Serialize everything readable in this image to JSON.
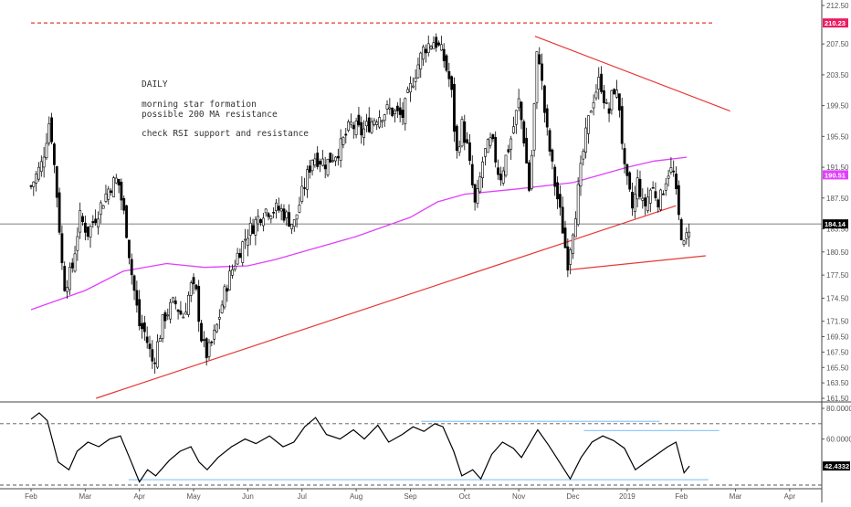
{
  "annotations": {
    "timeframe": "DAILY",
    "line1": "morning star formation",
    "line2": "possible 200 MA resistance",
    "line3": "check RSI support and resistance"
  },
  "chart_data": [
    {
      "type": "candlestick",
      "title": "",
      "ylim": [
        161.5,
        212.5
      ],
      "y_ticks": [
        "212.50",
        "207.50",
        "203.50",
        "199.50",
        "195.50",
        "191.50",
        "187.50",
        "183.50",
        "180.50",
        "177.50",
        "174.50",
        "171.50",
        "169.50",
        "167.50",
        "165.50",
        "163.50",
        "161.50"
      ],
      "x_ticks": [
        "Feb",
        "Mar",
        "Apr",
        "May",
        "Jun",
        "Jul",
        "Aug",
        "Sep",
        "Oct",
        "Nov",
        "Dec",
        "2019",
        "Feb",
        "Mar",
        "Apr"
      ],
      "price_labels": [
        {
          "text": "210.23",
          "value": 210.23,
          "color": "#e91e63"
        },
        {
          "text": "190.51",
          "value": 190.51,
          "color": "#e040fb"
        },
        {
          "text": "184.14",
          "value": 184.14,
          "color": "#000000"
        }
      ],
      "close_path": [
        {
          "m": 0,
          "v": 189
        },
        {
          "m": 0.2,
          "v": 192
        },
        {
          "m": 0.35,
          "v": 198
        },
        {
          "m": 0.5,
          "v": 186
        },
        {
          "m": 0.6,
          "v": 176
        },
        {
          "m": 0.75,
          "v": 178
        },
        {
          "m": 0.9,
          "v": 185
        },
        {
          "m": 1.05,
          "v": 183
        },
        {
          "m": 1.25,
          "v": 186
        },
        {
          "m": 1.45,
          "v": 189
        },
        {
          "m": 1.6,
          "v": 190
        },
        {
          "m": 1.75,
          "v": 184
        },
        {
          "m": 1.85,
          "v": 178
        },
        {
          "m": 2.0,
          "v": 171
        },
        {
          "m": 2.1,
          "v": 170
        },
        {
          "m": 2.25,
          "v": 166
        },
        {
          "m": 2.45,
          "v": 172
        },
        {
          "m": 2.65,
          "v": 174
        },
        {
          "m": 2.8,
          "v": 172
        },
        {
          "m": 2.95,
          "v": 176
        },
        {
          "m": 3.05,
          "v": 175
        },
        {
          "m": 3.15,
          "v": 169
        },
        {
          "m": 3.25,
          "v": 167
        },
        {
          "m": 3.4,
          "v": 170
        },
        {
          "m": 3.6,
          "v": 176
        },
        {
          "m": 3.8,
          "v": 180
        },
        {
          "m": 4.0,
          "v": 183
        },
        {
          "m": 4.3,
          "v": 186
        },
        {
          "m": 4.6,
          "v": 186
        },
        {
          "m": 4.85,
          "v": 184
        },
        {
          "m": 5.0,
          "v": 188
        },
        {
          "m": 5.2,
          "v": 193
        },
        {
          "m": 5.45,
          "v": 192
        },
        {
          "m": 5.7,
          "v": 194
        },
        {
          "m": 5.9,
          "v": 197
        },
        {
          "m": 6.1,
          "v": 196
        },
        {
          "m": 6.35,
          "v": 198
        },
        {
          "m": 6.6,
          "v": 199
        },
        {
          "m": 6.85,
          "v": 198
        },
        {
          "m": 7.05,
          "v": 203
        },
        {
          "m": 7.25,
          "v": 207
        },
        {
          "m": 7.45,
          "v": 208
        },
        {
          "m": 7.6,
          "v": 206
        },
        {
          "m": 7.75,
          "v": 202
        },
        {
          "m": 7.85,
          "v": 193
        },
        {
          "m": 7.95,
          "v": 197
        },
        {
          "m": 8.05,
          "v": 194
        },
        {
          "m": 8.2,
          "v": 186
        },
        {
          "m": 8.35,
          "v": 193
        },
        {
          "m": 8.5,
          "v": 195
        },
        {
          "m": 8.65,
          "v": 190
        },
        {
          "m": 8.85,
          "v": 195
        },
        {
          "m": 9.0,
          "v": 200
        },
        {
          "m": 9.1,
          "v": 195
        },
        {
          "m": 9.2,
          "v": 188
        },
        {
          "m": 9.35,
          "v": 208
        },
        {
          "m": 9.5,
          "v": 197
        },
        {
          "m": 9.65,
          "v": 190
        },
        {
          "m": 9.8,
          "v": 184
        },
        {
          "m": 9.9,
          "v": 179
        },
        {
          "m": 10.05,
          "v": 186
        },
        {
          "m": 10.2,
          "v": 194
        },
        {
          "m": 10.35,
          "v": 200
        },
        {
          "m": 10.5,
          "v": 203
        },
        {
          "m": 10.65,
          "v": 198
        },
        {
          "m": 10.75,
          "v": 202
        },
        {
          "m": 10.85,
          "v": 200
        },
        {
          "m": 10.95,
          "v": 191
        },
        {
          "m": 11.1,
          "v": 186
        },
        {
          "m": 11.2,
          "v": 190
        },
        {
          "m": 11.3,
          "v": 186
        },
        {
          "m": 11.45,
          "v": 189
        },
        {
          "m": 11.6,
          "v": 187
        },
        {
          "m": 11.75,
          "v": 191
        },
        {
          "m": 11.85,
          "v": 191
        },
        {
          "m": 11.95,
          "v": 185
        },
        {
          "m": 12.05,
          "v": 181
        },
        {
          "m": 12.15,
          "v": 184.1
        }
      ],
      "moving_average_200": [
        {
          "m": 0,
          "v": 173
        },
        {
          "m": 1,
          "v": 175.5
        },
        {
          "m": 1.7,
          "v": 178
        },
        {
          "m": 2.5,
          "v": 179
        },
        {
          "m": 3.2,
          "v": 178.5
        },
        {
          "m": 4,
          "v": 178.7
        },
        {
          "m": 4.5,
          "v": 179.5
        },
        {
          "m": 5,
          "v": 180.5
        },
        {
          "m": 6,
          "v": 182.5
        },
        {
          "m": 7,
          "v": 185
        },
        {
          "m": 7.5,
          "v": 187
        },
        {
          "m": 8,
          "v": 188
        },
        {
          "m": 9,
          "v": 188.7
        },
        {
          "m": 10,
          "v": 189.5
        },
        {
          "m": 10.5,
          "v": 190.5
        },
        {
          "m": 11,
          "v": 191.5
        },
        {
          "m": 11.5,
          "v": 192.3
        },
        {
          "m": 12.1,
          "v": 192.8
        }
      ],
      "trendlines": [
        {
          "name": "resistance-top",
          "from": {
            "m": 0.0,
            "v": 210.23
          },
          "to": {
            "m": 12.6,
            "v": 210.23
          },
          "style": "dashed",
          "color": "#e53935"
        },
        {
          "name": "long-support",
          "from": {
            "m": 1.2,
            "v": 161.5
          },
          "to": {
            "m": 11.9,
            "v": 186.5
          },
          "style": "solid",
          "color": "#e53935"
        },
        {
          "name": "descending-resistance",
          "from": {
            "m": 9.3,
            "v": 208.5
          },
          "to": {
            "m": 12.9,
            "v": 198.8
          },
          "style": "solid",
          "color": "#e53935"
        },
        {
          "name": "recent-support",
          "from": {
            "m": 9.95,
            "v": 178.2
          },
          "to": {
            "m": 12.45,
            "v": 180.0
          },
          "style": "solid",
          "color": "#e53935"
        }
      ]
    },
    {
      "type": "line",
      "title": "",
      "ylim": [
        30,
        80
      ],
      "y_ticks": [
        "80.0000",
        "60.0000"
      ],
      "price_labels": [
        {
          "text": "42.4332",
          "value": 42.4332,
          "color": "#000000"
        }
      ],
      "bands": [
        70,
        30
      ],
      "series": [
        {
          "values": [
            {
              "m": 0,
              "v": 73
            },
            {
              "m": 0.15,
              "v": 77
            },
            {
              "m": 0.3,
              "v": 72
            },
            {
              "m": 0.5,
              "v": 45
            },
            {
              "m": 0.7,
              "v": 40
            },
            {
              "m": 0.85,
              "v": 52
            },
            {
              "m": 1.05,
              "v": 58
            },
            {
              "m": 1.25,
              "v": 55
            },
            {
              "m": 1.45,
              "v": 60
            },
            {
              "m": 1.65,
              "v": 62
            },
            {
              "m": 1.85,
              "v": 45
            },
            {
              "m": 2.0,
              "v": 32
            },
            {
              "m": 2.15,
              "v": 40
            },
            {
              "m": 2.3,
              "v": 36
            },
            {
              "m": 2.55,
              "v": 46
            },
            {
              "m": 2.75,
              "v": 52
            },
            {
              "m": 2.95,
              "v": 55
            },
            {
              "m": 3.1,
              "v": 45
            },
            {
              "m": 3.25,
              "v": 40
            },
            {
              "m": 3.45,
              "v": 48
            },
            {
              "m": 3.7,
              "v": 55
            },
            {
              "m": 3.95,
              "v": 60
            },
            {
              "m": 4.15,
              "v": 57
            },
            {
              "m": 4.4,
              "v": 62
            },
            {
              "m": 4.65,
              "v": 55
            },
            {
              "m": 4.85,
              "v": 58
            },
            {
              "m": 5.05,
              "v": 68
            },
            {
              "m": 5.25,
              "v": 74
            },
            {
              "m": 5.45,
              "v": 63
            },
            {
              "m": 5.7,
              "v": 60
            },
            {
              "m": 5.95,
              "v": 66
            },
            {
              "m": 6.15,
              "v": 60
            },
            {
              "m": 6.4,
              "v": 69
            },
            {
              "m": 6.6,
              "v": 58
            },
            {
              "m": 6.85,
              "v": 63
            },
            {
              "m": 7.05,
              "v": 68
            },
            {
              "m": 7.25,
              "v": 65
            },
            {
              "m": 7.45,
              "v": 70
            },
            {
              "m": 7.6,
              "v": 68
            },
            {
              "m": 7.8,
              "v": 52
            },
            {
              "m": 7.95,
              "v": 36
            },
            {
              "m": 8.15,
              "v": 40
            },
            {
              "m": 8.3,
              "v": 34
            },
            {
              "m": 8.5,
              "v": 50
            },
            {
              "m": 8.7,
              "v": 58
            },
            {
              "m": 8.9,
              "v": 54
            },
            {
              "m": 9.05,
              "v": 48
            },
            {
              "m": 9.2,
              "v": 57
            },
            {
              "m": 9.35,
              "v": 66
            },
            {
              "m": 9.55,
              "v": 56
            },
            {
              "m": 9.75,
              "v": 45
            },
            {
              "m": 9.95,
              "v": 34
            },
            {
              "m": 10.15,
              "v": 48
            },
            {
              "m": 10.35,
              "v": 58
            },
            {
              "m": 10.55,
              "v": 62
            },
            {
              "m": 10.75,
              "v": 59
            },
            {
              "m": 10.95,
              "v": 54
            },
            {
              "m": 11.15,
              "v": 40
            },
            {
              "m": 11.35,
              "v": 45
            },
            {
              "m": 11.55,
              "v": 50
            },
            {
              "m": 11.75,
              "v": 55
            },
            {
              "m": 11.9,
              "v": 58
            },
            {
              "m": 12.05,
              "v": 38
            },
            {
              "m": 12.15,
              "v": 42.43
            }
          ]
        }
      ],
      "reference_lines": [
        {
          "name": "rsi-resistance-1",
          "from": {
            "m": 7.2,
            "v": 71.5
          },
          "to": {
            "m": 11.6,
            "v": 71.5
          },
          "color": "#90caf9"
        },
        {
          "name": "rsi-resistance-2",
          "from": {
            "m": 10.2,
            "v": 65.5
          },
          "to": {
            "m": 12.7,
            "v": 65.5
          },
          "color": "#90caf9"
        },
        {
          "name": "rsi-support",
          "from": {
            "m": 1.8,
            "v": 33.5
          },
          "to": {
            "m": 12.5,
            "v": 33.5
          },
          "color": "#90caf9"
        }
      ]
    }
  ]
}
